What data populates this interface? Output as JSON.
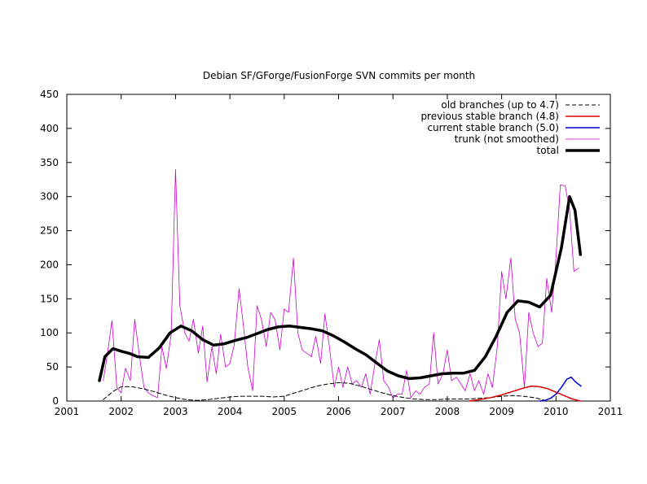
{
  "chart_data": {
    "type": "line",
    "title": "Debian SF/GForge/FusionForge SVN commits per month",
    "xlabel": "",
    "ylabel": "",
    "xlim": [
      2001,
      2011
    ],
    "ylim": [
      0,
      450
    ],
    "x_ticks": [
      "2001",
      "2002",
      "2003",
      "2004",
      "2005",
      "2006",
      "2007",
      "2008",
      "2009",
      "2010",
      "2011"
    ],
    "y_ticks": [
      "0",
      "50",
      "100",
      "150",
      "200",
      "250",
      "300",
      "350",
      "400",
      "450"
    ],
    "grid": false,
    "legend_position": "top-right",
    "series": [
      {
        "name": "old branches (up to 4.7)",
        "color": "#000000",
        "style": "dashed",
        "x": [
          2001.67,
          2001.85,
          2002.0,
          2002.2,
          2002.4,
          2002.6,
          2002.8,
          2003.0,
          2003.2,
          2003.4,
          2003.6,
          2003.8,
          2004.0,
          2004.2,
          2004.4,
          2004.6,
          2004.8,
          2005.0,
          2005.2,
          2005.4,
          2005.6,
          2005.8,
          2006.0,
          2006.2,
          2006.4,
          2006.6,
          2006.8,
          2007.0,
          2007.2,
          2007.4,
          2007.6,
          2007.8,
          2008.0,
          2008.2,
          2008.4,
          2008.6,
          2008.8,
          2009.0,
          2009.2,
          2009.4,
          2009.6,
          2009.8
        ],
        "y": [
          2,
          14,
          21,
          21,
          18,
          14,
          9,
          5,
          2,
          1,
          2,
          4,
          6,
          7,
          7,
          7,
          6,
          7,
          12,
          17,
          22,
          25,
          27,
          26,
          22,
          17,
          12,
          8,
          5,
          3,
          2,
          2,
          3,
          3,
          3,
          4,
          5,
          7,
          8,
          7,
          5,
          1
        ]
      },
      {
        "name": "previous stable branch (4.8)",
        "color": "#dd0000",
        "style": "solid",
        "x": [
          2008.4,
          2008.6,
          2008.8,
          2009.0,
          2009.2,
          2009.4,
          2009.55,
          2009.7,
          2009.85,
          2010.0,
          2010.15,
          2010.3,
          2010.45
        ],
        "y": [
          0,
          2,
          5,
          9,
          14,
          19,
          22,
          21,
          18,
          13,
          8,
          3,
          0
        ]
      },
      {
        "name": "current stable branch (5.0)",
        "color": "#0000cc",
        "style": "solid",
        "x": [
          2009.7,
          2009.8,
          2009.9,
          2010.0,
          2010.1,
          2010.2,
          2010.28,
          2010.36,
          2010.46
        ],
        "y": [
          0,
          1,
          4,
          10,
          20,
          32,
          35,
          28,
          22
        ]
      },
      {
        "name": "trunk (not smoothed)",
        "color": "#cc00cc",
        "style": "thin",
        "x": [
          2001.67,
          2001.75,
          2001.83,
          2001.92,
          2002.0,
          2002.08,
          2002.17,
          2002.25,
          2002.33,
          2002.42,
          2002.5,
          2002.58,
          2002.67,
          2002.75,
          2002.83,
          2002.92,
          2003.0,
          2003.08,
          2003.17,
          2003.25,
          2003.33,
          2003.42,
          2003.5,
          2003.58,
          2003.67,
          2003.75,
          2003.83,
          2003.92,
          2004.0,
          2004.08,
          2004.17,
          2004.25,
          2004.33,
          2004.42,
          2004.5,
          2004.58,
          2004.67,
          2004.75,
          2004.83,
          2004.92,
          2005.0,
          2005.08,
          2005.17,
          2005.25,
          2005.33,
          2005.42,
          2005.5,
          2005.58,
          2005.67,
          2005.75,
          2005.83,
          2005.92,
          2006.0,
          2006.08,
          2006.17,
          2006.25,
          2006.33,
          2006.42,
          2006.5,
          2006.58,
          2006.67,
          2006.75,
          2006.83,
          2006.92,
          2007.0,
          2007.08,
          2007.17,
          2007.25,
          2007.33,
          2007.42,
          2007.5,
          2007.58,
          2007.67,
          2007.75,
          2007.83,
          2007.92,
          2008.0,
          2008.08,
          2008.17,
          2008.25,
          2008.33,
          2008.42,
          2008.5,
          2008.58,
          2008.67,
          2008.75,
          2008.83,
          2008.92,
          2009.0,
          2009.08,
          2009.17,
          2009.25,
          2009.33,
          2009.42,
          2009.5,
          2009.58,
          2009.67,
          2009.75,
          2009.83,
          2009.92,
          2010.0,
          2010.08,
          2010.17,
          2010.25,
          2010.33,
          2010.42
        ],
        "y": [
          30,
          70,
          118,
          20,
          12,
          48,
          30,
          120,
          70,
          20,
          12,
          8,
          5,
          80,
          48,
          98,
          340,
          140,
          100,
          88,
          120,
          70,
          110,
          28,
          80,
          40,
          98,
          50,
          55,
          82,
          165,
          110,
          50,
          15,
          140,
          120,
          80,
          130,
          120,
          75,
          135,
          130,
          210,
          100,
          75,
          70,
          65,
          95,
          55,
          128,
          80,
          20,
          50,
          20,
          50,
          25,
          30,
          20,
          40,
          10,
          55,
          90,
          30,
          20,
          4,
          10,
          10,
          45,
          5,
          15,
          10,
          20,
          25,
          100,
          25,
          40,
          75,
          30,
          35,
          25,
          15,
          40,
          15,
          30,
          10,
          40,
          20,
          80,
          190,
          150,
          210,
          120,
          100,
          20,
          130,
          100,
          80,
          85,
          180,
          130,
          210,
          317,
          316,
          280,
          190,
          195
        ]
      },
      {
        "name": "total",
        "color": "#000000",
        "style": "thick",
        "x": [
          2001.6,
          2001.7,
          2001.85,
          2002.0,
          2002.15,
          2002.3,
          2002.5,
          2002.7,
          2002.9,
          2003.1,
          2003.3,
          2003.5,
          2003.7,
          2003.9,
          2004.1,
          2004.3,
          2004.5,
          2004.7,
          2004.9,
          2005.1,
          2005.3,
          2005.5,
          2005.7,
          2005.9,
          2006.1,
          2006.3,
          2006.5,
          2006.7,
          2006.9,
          2007.1,
          2007.3,
          2007.5,
          2007.7,
          2007.9,
          2008.1,
          2008.3,
          2008.5,
          2008.7,
          2008.9,
          2009.1,
          2009.3,
          2009.5,
          2009.7,
          2009.9,
          2010.1,
          2010.25,
          2010.35,
          2010.45
        ],
        "y": [
          30,
          65,
          77,
          73,
          70,
          65,
          64,
          78,
          100,
          110,
          103,
          90,
          82,
          84,
          89,
          93,
          99,
          105,
          109,
          110,
          108,
          106,
          103,
          96,
          87,
          77,
          68,
          56,
          44,
          37,
          33,
          34,
          37,
          40,
          41,
          41,
          45,
          65,
          95,
          130,
          147,
          145,
          138,
          155,
          225,
          300,
          280,
          215
        ]
      }
    ]
  }
}
